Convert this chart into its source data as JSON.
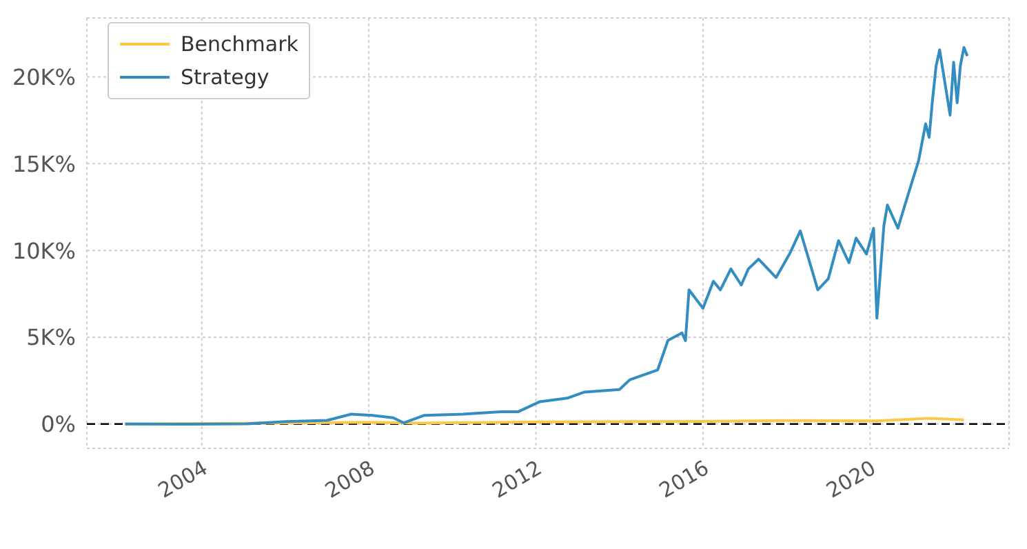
{
  "chart_data": {
    "type": "line",
    "legend": "top left",
    "grid": true,
    "line_style": "solid",
    "marker": "none",
    "xlim": [
      "2001-04",
      "2023-05"
    ],
    "xticks": [
      "2004",
      "2008",
      "2012",
      "2016",
      "2020"
    ],
    "ylim": [
      -1400,
      23400
    ],
    "yticks": [
      {
        "value": 0,
        "label": "0%"
      },
      {
        "value": 5000,
        "label": "5K%"
      },
      {
        "value": 10000,
        "label": "10K%"
      },
      {
        "value": 15000,
        "label": "15K%"
      },
      {
        "value": 20000,
        "label": "20K%"
      }
    ],
    "ref_lines": [
      {
        "axis": "y",
        "value": 0,
        "color": "#000000",
        "line_style": "dashed"
      }
    ],
    "series": [
      {
        "name": "Benchmark",
        "color": "#fbc94a",
        "x": [
          "2002-03",
          "2006-01",
          "2008-01",
          "2009-03",
          "2012-01",
          "2016-01",
          "2018-01",
          "2020-03",
          "2021-06",
          "2022-04"
        ],
        "values": [
          0,
          60,
          100,
          50,
          120,
          150,
          200,
          180,
          330,
          240
        ]
      },
      {
        "name": "Strategy",
        "color": "#348dc1",
        "x": [
          "2002-03",
          "2003-10",
          "2005-02",
          "2006-01",
          "2007-01",
          "2007-08",
          "2008-02",
          "2008-08",
          "2008-11",
          "2009-05",
          "2010-04",
          "2011-03",
          "2011-08",
          "2012-02",
          "2012-10",
          "2013-03",
          "2014-01",
          "2014-04",
          "2014-12",
          "2015-03",
          "2015-07",
          "2015-08",
          "2015-09",
          "2016-01",
          "2016-04",
          "2016-06",
          "2016-09",
          "2016-12",
          "2017-02",
          "2017-05",
          "2017-10",
          "2018-02",
          "2018-05",
          "2018-07",
          "2018-10",
          "2019-01",
          "2019-04",
          "2019-07",
          "2019-09",
          "2019-12",
          "2020-02",
          "2020-03",
          "2020-05",
          "2020-06",
          "2020-09",
          "2020-11",
          "2021-03",
          "2021-05",
          "2021-06",
          "2021-07",
          "2021-08",
          "2021-09",
          "2021-12",
          "2022-01",
          "2022-02",
          "2022-03",
          "2022-04",
          "2022-05"
        ],
        "values": [
          0,
          -10,
          10,
          140,
          210,
          570,
          500,
          360,
          70,
          500,
          570,
          710,
          710,
          1280,
          1490,
          1840,
          1990,
          2550,
          3120,
          4820,
          5250,
          4800,
          7730,
          6670,
          8230,
          7730,
          8940,
          8010,
          8940,
          9500,
          8440,
          9860,
          11130,
          9790,
          7730,
          8370,
          10570,
          9290,
          10710,
          9790,
          11280,
          6100,
          11420,
          12620,
          11280,
          12620,
          15180,
          17300,
          16520,
          18720,
          20640,
          21560,
          17800,
          20850,
          18510,
          20640,
          21700,
          21200
        ]
      }
    ]
  }
}
